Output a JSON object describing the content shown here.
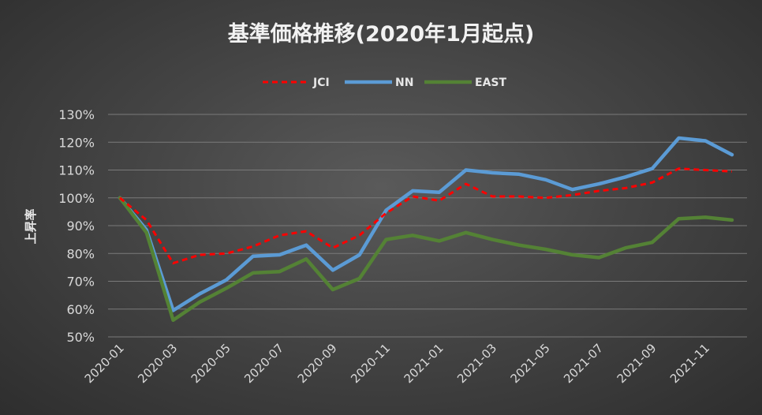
{
  "chart_data": {
    "type": "line",
    "title": "基準価格推移(2020年1月起点)",
    "ylabel": "上昇率",
    "xlabel": "",
    "ylim": [
      0.5,
      1.3
    ],
    "y_ticks": [
      0.5,
      0.6,
      0.7,
      0.8,
      0.9,
      1.0,
      1.1,
      1.2,
      1.3
    ],
    "y_tick_labels": [
      "50%",
      "60%",
      "70%",
      "80%",
      "90%",
      "100%",
      "110%",
      "120%",
      "130%"
    ],
    "grid": true,
    "legend_position": "top",
    "x": [
      "2020-01",
      "2020-02",
      "2020-03",
      "2020-04",
      "2020-05",
      "2020-06",
      "2020-07",
      "2020-08",
      "2020-09",
      "2020-10",
      "2020-11",
      "2020-12",
      "2021-01",
      "2021-02",
      "2021-03",
      "2021-04",
      "2021-05",
      "2021-06",
      "2021-07",
      "2021-08",
      "2021-09",
      "2021-10",
      "2021-11",
      "2021-12"
    ],
    "x_tick_labels": [
      "2020-01",
      "2020-03",
      "2020-05",
      "2020-07",
      "2020-09",
      "2020-11",
      "2021-01",
      "2021-03",
      "2021-05",
      "2021-07",
      "2021-09",
      "2021-11"
    ],
    "series": [
      {
        "name": "JCI",
        "color": "#ff0000",
        "style": "dashed",
        "values": [
          1.0,
          0.92,
          0.765,
          0.795,
          0.8,
          0.825,
          0.865,
          0.88,
          0.82,
          0.865,
          0.945,
          1.005,
          0.99,
          1.05,
          1.005,
          1.005,
          1.0,
          1.01,
          1.025,
          1.035,
          1.055,
          1.105,
          1.1,
          1.095
        ]
      },
      {
        "name": "NN",
        "color": "#5b9bd5",
        "style": "solid",
        "values": [
          1.0,
          0.885,
          0.595,
          0.655,
          0.705,
          0.79,
          0.795,
          0.83,
          0.74,
          0.795,
          0.955,
          1.025,
          1.02,
          1.1,
          1.09,
          1.085,
          1.065,
          1.03,
          1.05,
          1.075,
          1.105,
          1.215,
          1.205,
          1.155
        ]
      },
      {
        "name": "EAST",
        "color": "#548235",
        "style": "solid",
        "values": [
          1.0,
          0.875,
          0.56,
          0.625,
          0.675,
          0.73,
          0.735,
          0.78,
          0.67,
          0.71,
          0.85,
          0.865,
          0.845,
          0.875,
          0.85,
          0.83,
          0.815,
          0.795,
          0.785,
          0.82,
          0.84,
          0.925,
          0.93,
          0.92
        ]
      }
    ]
  }
}
